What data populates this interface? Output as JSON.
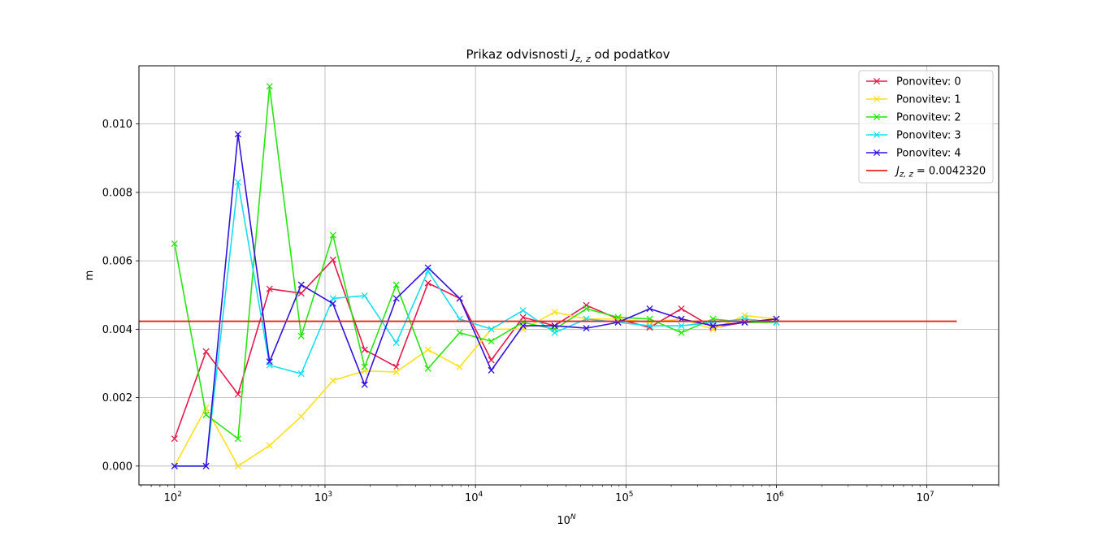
{
  "chart_data": {
    "type": "line",
    "title_prefix": "Prikaz odvisnosti ",
    "title_symbol": "J",
    "title_subscript": "z, z",
    "title_suffix": " od podatkov",
    "xlabel_base": "10",
    "xlabel_exp": "N",
    "ylabel": "m",
    "x_scale": "log",
    "xlim": [
      58,
      30000000
    ],
    "ylim": [
      -0.00055,
      0.0117
    ],
    "grid": true,
    "legend_position": "top-right",
    "x_ticks": [
      {
        "base": "10",
        "exp": "2",
        "value": 100
      },
      {
        "base": "10",
        "exp": "3",
        "value": 1000
      },
      {
        "base": "10",
        "exp": "4",
        "value": 10000
      },
      {
        "base": "10",
        "exp": "5",
        "value": 100000
      },
      {
        "base": "10",
        "exp": "6",
        "value": 1000000
      },
      {
        "base": "10",
        "exp": "7",
        "value": 10000000
      }
    ],
    "y_ticks": [
      {
        "label": "0.000",
        "value": 0.0
      },
      {
        "label": "0.002",
        "value": 0.002
      },
      {
        "label": "0.004",
        "value": 0.004
      },
      {
        "label": "0.006",
        "value": 0.006
      },
      {
        "label": "0.008",
        "value": 0.008
      },
      {
        "label": "0.010",
        "value": 0.01
      }
    ],
    "x": [
      100,
      162,
      264,
      428,
      695,
      1129,
      1833,
      2976,
      4833,
      7848,
      12743,
      20691,
      33598,
      54556,
      88587,
      143845,
      233572,
      379269,
      615848,
      1000000
    ],
    "series": [
      {
        "name": "Ponovitev: 0",
        "color": "#e6194b",
        "marker": "x",
        "values": [
          0.0008,
          0.00335,
          0.0021,
          0.00518,
          0.00505,
          0.00603,
          0.0034,
          0.0029,
          0.00535,
          0.0049,
          0.0031,
          0.00435,
          0.0041,
          0.0047,
          0.0043,
          0.00405,
          0.0046,
          0.00405,
          0.0042,
          0.0043
        ]
      },
      {
        "name": "Ponovitev: 1",
        "color": "#ffe119",
        "marker": "x",
        "values": [
          0.0,
          0.0017,
          0.0,
          0.0006,
          0.00145,
          0.0025,
          0.00278,
          0.00275,
          0.0034,
          0.0029,
          0.004,
          0.004,
          0.0045,
          0.0043,
          0.0043,
          0.0042,
          0.0043,
          0.004,
          0.0044,
          0.0043
        ]
      },
      {
        "name": "Ponovitev: 2",
        "color": "#27e60f",
        "marker": "x",
        "values": [
          0.0065,
          0.0015,
          0.0008,
          0.0111,
          0.0038,
          0.00675,
          0.0029,
          0.0053,
          0.00285,
          0.0039,
          0.00365,
          0.0042,
          0.004,
          0.0046,
          0.00435,
          0.0043,
          0.0039,
          0.0043,
          0.0042,
          0.0042
        ]
      },
      {
        "name": "Ponovitev: 3",
        "color": "#14dff0",
        "marker": "x",
        "values": [
          0.0,
          0.0,
          0.0083,
          0.00295,
          0.0027,
          0.0049,
          0.00498,
          0.0036,
          0.0057,
          0.0043,
          0.004,
          0.00455,
          0.0039,
          0.0043,
          0.0042,
          0.0041,
          0.0041,
          0.0042,
          0.0043,
          0.0042
        ]
      },
      {
        "name": "Ponovitev: 4",
        "color": "#3410e0",
        "marker": "x",
        "values": [
          0.0,
          0.0,
          0.0097,
          0.00305,
          0.0053,
          0.00475,
          0.00238,
          0.0049,
          0.0058,
          0.0049,
          0.0028,
          0.0041,
          0.0041,
          0.00403,
          0.0042,
          0.0046,
          0.0043,
          0.0041,
          0.0042,
          0.0043
        ]
      }
    ],
    "reference_line": {
      "value": 0.004232,
      "x_range": [
        58,
        15800000
      ],
      "color": "#e8251e",
      "label_symbol": "J",
      "label_subscript": "z, z",
      "label_value": " = 0.0042320"
    }
  }
}
